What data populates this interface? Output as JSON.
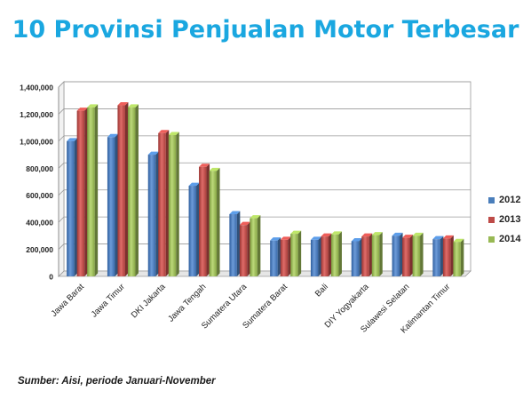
{
  "title": "10 Provinsi Penjualan Motor Terbesar",
  "source": "Sumber: Aisi, periode Januari-November",
  "chart_data": {
    "type": "bar",
    "title": "10 Provinsi Penjualan Motor Terbesar",
    "xlabel": "",
    "ylabel": "",
    "ylim": [
      0,
      1400000
    ],
    "yticks": [
      "0",
      "200,000",
      "400,000",
      "600,000",
      "800,000",
      "1,000,000",
      "1,200,000",
      "1,400,000"
    ],
    "grid": true,
    "legend_position": "right",
    "categories": [
      "Jawa Barat",
      "Jawa Timur",
      "DKI Jakarta",
      "Jawa Tengah",
      "Sumatera Utara",
      "Sumatera Barat",
      "Bali",
      "DIY Yogyakarta",
      "Sulawesi Selatan",
      "Kalimantan Timur"
    ],
    "series": [
      {
        "name": "2012",
        "color": "#4a7ebb",
        "values": [
          1000000,
          1030000,
          900000,
          670000,
          460000,
          265000,
          270000,
          260000,
          300000,
          275000
        ]
      },
      {
        "name": "2013",
        "color": "#be4b48",
        "values": [
          1225000,
          1265000,
          1060000,
          810000,
          380000,
          270000,
          295000,
          295000,
          285000,
          280000
        ]
      },
      {
        "name": "2014",
        "color": "#98b954",
        "values": [
          1250000,
          1250000,
          1045000,
          780000,
          430000,
          315000,
          310000,
          305000,
          300000,
          255000
        ]
      }
    ]
  }
}
